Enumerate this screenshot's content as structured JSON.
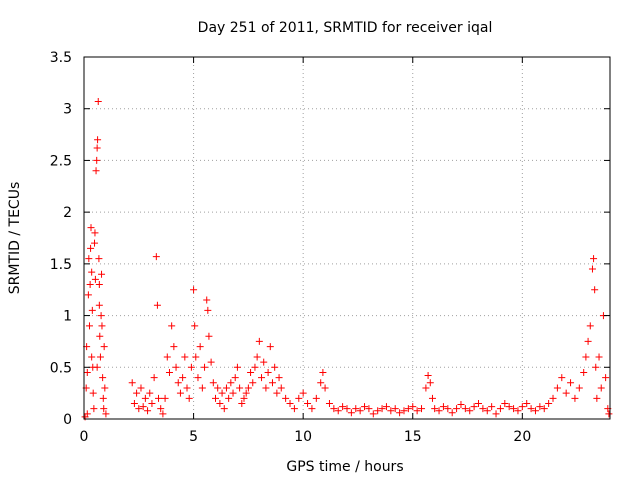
{
  "chart_data": {
    "type": "scatter",
    "title": "Day 251 of 2011, SRMTID for receiver iqal",
    "xlabel": "GPS time / hours",
    "ylabel": "SRMTID / TECUs",
    "xlim": [
      0,
      24
    ],
    "ylim": [
      0,
      3.5
    ],
    "xticks": [
      0,
      5,
      10,
      15,
      20
    ],
    "xtick_labels": [
      "0",
      "5",
      "10",
      "15",
      "20"
    ],
    "yticks": [
      0,
      0.5,
      1,
      1.5,
      2,
      2.5,
      3,
      3.5
    ],
    "ytick_labels": [
      "0",
      "0.5",
      "1",
      "1.5",
      "2",
      "2.5",
      "3",
      "3.5"
    ],
    "grid": true,
    "marker": "plus",
    "color": "#ff0000",
    "series": [
      {
        "name": "SRMTID",
        "points": [
          [
            0.05,
            0.02
          ],
          [
            0.1,
            0.3
          ],
          [
            0.12,
            0.7
          ],
          [
            0.15,
            0.45
          ],
          [
            0.2,
            1.2
          ],
          [
            0.22,
            1.55
          ],
          [
            0.25,
            0.9
          ],
          [
            0.28,
            1.3
          ],
          [
            0.3,
            1.65
          ],
          [
            0.32,
            1.85
          ],
          [
            0.35,
            1.42
          ],
          [
            0.38,
            1.05
          ],
          [
            0.4,
            0.5
          ],
          [
            0.42,
            0.25
          ],
          [
            0.45,
            0.1
          ],
          [
            0.48,
            1.7
          ],
          [
            0.5,
            1.8
          ],
          [
            0.52,
            1.35
          ],
          [
            0.55,
            2.4
          ],
          [
            0.58,
            2.5
          ],
          [
            0.6,
            2.62
          ],
          [
            0.62,
            2.7
          ],
          [
            0.65,
            3.07
          ],
          [
            0.68,
            1.55
          ],
          [
            0.7,
            1.3
          ],
          [
            0.72,
            0.8
          ],
          [
            0.75,
            0.6
          ],
          [
            0.78,
            1.0
          ],
          [
            0.8,
            1.4
          ],
          [
            0.82,
            0.9
          ],
          [
            0.85,
            0.4
          ],
          [
            0.88,
            0.2
          ],
          [
            0.9,
            0.1
          ],
          [
            0.92,
            0.7
          ],
          [
            0.95,
            0.3
          ],
          [
            1.0,
            0.05
          ],
          [
            0.15,
            0.05
          ],
          [
            0.35,
            0.6
          ],
          [
            0.6,
            0.5
          ],
          [
            0.7,
            1.1
          ],
          [
            2.2,
            0.35
          ],
          [
            2.3,
            0.15
          ],
          [
            2.4,
            0.25
          ],
          [
            2.5,
            0.1
          ],
          [
            2.6,
            0.3
          ],
          [
            2.7,
            0.12
          ],
          [
            2.8,
            0.2
          ],
          [
            2.9,
            0.08
          ],
          [
            3.0,
            0.25
          ],
          [
            3.1,
            0.15
          ],
          [
            3.2,
            0.4
          ],
          [
            3.3,
            1.57
          ],
          [
            3.35,
            1.1
          ],
          [
            3.4,
            0.2
          ],
          [
            3.5,
            0.1
          ],
          [
            3.6,
            0.05
          ],
          [
            3.7,
            0.2
          ],
          [
            3.8,
            0.6
          ],
          [
            3.9,
            0.45
          ],
          [
            4.0,
            0.9
          ],
          [
            4.1,
            0.7
          ],
          [
            4.2,
            0.5
          ],
          [
            4.3,
            0.35
          ],
          [
            4.4,
            0.25
          ],
          [
            4.5,
            0.4
          ],
          [
            4.6,
            0.6
          ],
          [
            4.7,
            0.3
          ],
          [
            4.8,
            0.2
          ],
          [
            4.9,
            0.5
          ],
          [
            5.0,
            1.25
          ],
          [
            5.05,
            0.9
          ],
          [
            5.1,
            0.6
          ],
          [
            5.2,
            0.4
          ],
          [
            5.3,
            0.7
          ],
          [
            5.4,
            0.3
          ],
          [
            5.5,
            0.5
          ],
          [
            5.6,
            1.15
          ],
          [
            5.65,
            1.05
          ],
          [
            5.7,
            0.8
          ],
          [
            5.8,
            0.55
          ],
          [
            5.9,
            0.35
          ],
          [
            6.0,
            0.2
          ],
          [
            6.1,
            0.3
          ],
          [
            6.2,
            0.15
          ],
          [
            6.3,
            0.25
          ],
          [
            6.4,
            0.1
          ],
          [
            6.5,
            0.3
          ],
          [
            6.6,
            0.2
          ],
          [
            6.7,
            0.35
          ],
          [
            6.8,
            0.25
          ],
          [
            6.9,
            0.4
          ],
          [
            7.0,
            0.5
          ],
          [
            7.1,
            0.3
          ],
          [
            7.2,
            0.15
          ],
          [
            7.3,
            0.2
          ],
          [
            7.4,
            0.25
          ],
          [
            7.5,
            0.3
          ],
          [
            7.6,
            0.45
          ],
          [
            7.7,
            0.35
          ],
          [
            7.8,
            0.5
          ],
          [
            7.9,
            0.6
          ],
          [
            8.0,
            0.75
          ],
          [
            8.1,
            0.4
          ],
          [
            8.2,
            0.55
          ],
          [
            8.3,
            0.3
          ],
          [
            8.4,
            0.45
          ],
          [
            8.5,
            0.7
          ],
          [
            8.6,
            0.35
          ],
          [
            8.7,
            0.5
          ],
          [
            8.8,
            0.25
          ],
          [
            8.9,
            0.4
          ],
          [
            9.0,
            0.3
          ],
          [
            9.2,
            0.2
          ],
          [
            9.4,
            0.15
          ],
          [
            9.6,
            0.1
          ],
          [
            9.8,
            0.2
          ],
          [
            10.0,
            0.25
          ],
          [
            10.2,
            0.15
          ],
          [
            10.4,
            0.1
          ],
          [
            10.6,
            0.2
          ],
          [
            10.8,
            0.35
          ],
          [
            10.9,
            0.45
          ],
          [
            11.0,
            0.3
          ],
          [
            11.2,
            0.15
          ],
          [
            11.4,
            0.1
          ],
          [
            11.6,
            0.08
          ],
          [
            11.8,
            0.12
          ],
          [
            12.0,
            0.1
          ],
          [
            12.2,
            0.06
          ],
          [
            12.4,
            0.1
          ],
          [
            12.6,
            0.08
          ],
          [
            12.8,
            0.12
          ],
          [
            13.0,
            0.1
          ],
          [
            13.2,
            0.05
          ],
          [
            13.4,
            0.08
          ],
          [
            13.6,
            0.1
          ],
          [
            13.8,
            0.12
          ],
          [
            14.0,
            0.08
          ],
          [
            14.2,
            0.1
          ],
          [
            14.4,
            0.06
          ],
          [
            14.6,
            0.08
          ],
          [
            14.8,
            0.1
          ],
          [
            15.0,
            0.12
          ],
          [
            15.2,
            0.08
          ],
          [
            15.4,
            0.1
          ],
          [
            15.6,
            0.3
          ],
          [
            15.7,
            0.42
          ],
          [
            15.8,
            0.35
          ],
          [
            15.9,
            0.2
          ],
          [
            16.0,
            0.1
          ],
          [
            16.2,
            0.08
          ],
          [
            16.4,
            0.12
          ],
          [
            16.6,
            0.1
          ],
          [
            16.8,
            0.06
          ],
          [
            17.0,
            0.1
          ],
          [
            17.2,
            0.14
          ],
          [
            17.4,
            0.1
          ],
          [
            17.6,
            0.08
          ],
          [
            17.8,
            0.12
          ],
          [
            18.0,
            0.15
          ],
          [
            18.2,
            0.1
          ],
          [
            18.4,
            0.08
          ],
          [
            18.6,
            0.12
          ],
          [
            18.8,
            0.05
          ],
          [
            19.0,
            0.1
          ],
          [
            19.2,
            0.15
          ],
          [
            19.4,
            0.12
          ],
          [
            19.6,
            0.1
          ],
          [
            19.8,
            0.08
          ],
          [
            20.0,
            0.12
          ],
          [
            20.2,
            0.15
          ],
          [
            20.4,
            0.1
          ],
          [
            20.6,
            0.08
          ],
          [
            20.8,
            0.12
          ],
          [
            21.0,
            0.1
          ],
          [
            21.2,
            0.15
          ],
          [
            21.4,
            0.2
          ],
          [
            21.6,
            0.3
          ],
          [
            21.8,
            0.4
          ],
          [
            22.0,
            0.25
          ],
          [
            22.2,
            0.35
          ],
          [
            22.4,
            0.2
          ],
          [
            22.6,
            0.3
          ],
          [
            22.8,
            0.45
          ],
          [
            22.9,
            0.6
          ],
          [
            23.0,
            0.75
          ],
          [
            23.1,
            0.9
          ],
          [
            23.2,
            1.45
          ],
          [
            23.25,
            1.55
          ],
          [
            23.3,
            1.25
          ],
          [
            23.35,
            0.5
          ],
          [
            23.4,
            0.2
          ],
          [
            23.5,
            0.6
          ],
          [
            23.6,
            0.3
          ],
          [
            23.7,
            1.0
          ],
          [
            23.8,
            0.4
          ],
          [
            23.9,
            0.1
          ],
          [
            23.95,
            0.05
          ]
        ]
      }
    ]
  }
}
